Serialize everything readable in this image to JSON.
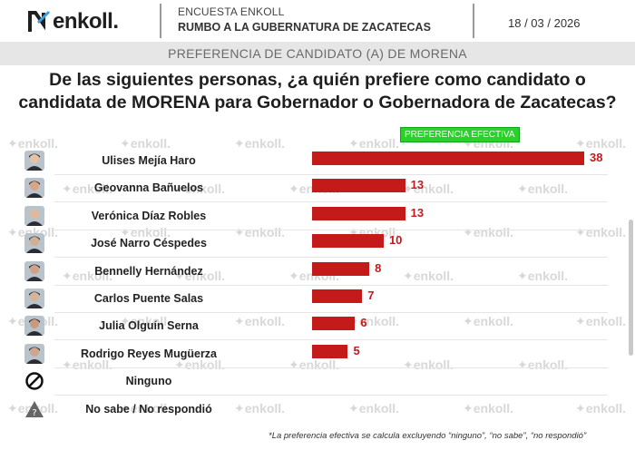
{
  "header": {
    "brand": "enkoll.",
    "survey_label": "ENCUESTA ENKOLL",
    "survey_subtitle": "RUMBO A LA GUBERNATURA DE ZACATECAS",
    "date": "18 / 03 / 2026"
  },
  "band_title": "PREFERENCIA DE CANDIDATO (A) DE MORENA",
  "question_line1": "De las siguientes personas, ¿a quién prefiere como candidato o",
  "question_line2": "candidata de MORENA para Gobernador o Gobernadora de Zacatecas?",
  "watermark": "enkoll.",
  "footnote": "*La preferencia efectiva se calcula excluyendo “ninguno”, “no sabe”, “no respondió”",
  "chart_data": {
    "type": "bar",
    "orientation": "horizontal",
    "legend": "PREFERENCIA EFECTIVA",
    "categories": [
      "Ulises Mejía Haro",
      "Geovanna Bañuelos",
      "Verónica Díaz Robles",
      "José Narro Céspedes",
      "Bennelly Hernández",
      "Carlos Puente Salas",
      "Julia Olguín Serna",
      "Rodrigo Reyes Mugüerza",
      "Ninguno",
      "No sabe / No respondió"
    ],
    "values": [
      38,
      13,
      13,
      10,
      8,
      7,
      6,
      5,
      null,
      null
    ],
    "xlim": [
      0,
      38
    ],
    "colors": {
      "bar": "#c41a1a",
      "legend": "#2ad12a"
    }
  }
}
